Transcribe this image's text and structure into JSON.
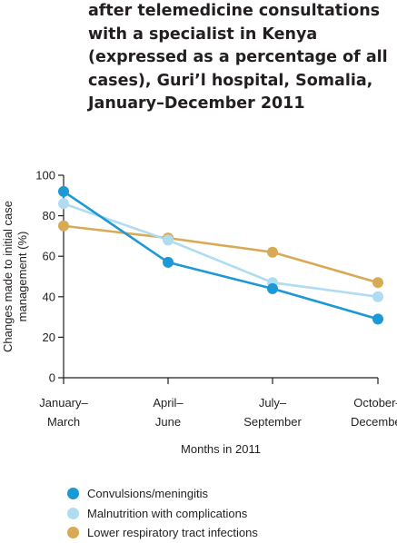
{
  "title_lines": [
    "after telemedicine consultations",
    "with a specialist in Kenya",
    "(expressed as a percentage of all",
    "cases), Guri’l hospital, Somalia,",
    "January–December 2011"
  ],
  "colors": {
    "convulsions": "#1b98d5",
    "malnutrition": "#b0dcf2",
    "respiratory": "#d8aa55",
    "axis": "#231f20"
  },
  "chart_data": {
    "type": "line",
    "title": "",
    "xlabel": "Months in 2011",
    "ylabel": "Changes made to initial case management (%)",
    "ylabel_lines": [
      "Changes made to initial case",
      "management (%)"
    ],
    "categories": [
      "January–March",
      "April–June",
      "July–September",
      "October–December"
    ],
    "category_lines": [
      [
        "January–",
        "March"
      ],
      [
        "April–",
        "June"
      ],
      [
        "July–",
        "September"
      ],
      [
        "October–",
        "December"
      ]
    ],
    "ylim": [
      0,
      100
    ],
    "yticks": [
      0,
      20,
      40,
      60,
      80,
      100
    ],
    "grid": false,
    "legend_position": "bottom-left",
    "series": [
      {
        "name": "Convulsions/meningitis",
        "color_key": "convulsions",
        "values": [
          92,
          57,
          44,
          29
        ]
      },
      {
        "name": "Malnutrition with complications",
        "color_key": "malnutrition",
        "values": [
          86,
          68,
          47,
          40
        ]
      },
      {
        "name": "Lower respiratory tract infections",
        "color_key": "respiratory",
        "values": [
          75,
          69,
          62,
          47
        ]
      }
    ]
  }
}
